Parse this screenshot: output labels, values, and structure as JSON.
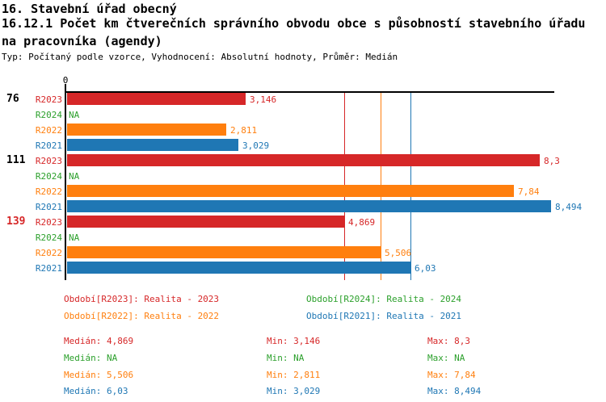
{
  "header": {
    "line1": "16. Stavební úřad obecný",
    "line2": "16.12.1 Počet km čtverečních správního obvodu obce s působností stavebního úřadu",
    "line3": "na pracovníka (agendy)",
    "meta": "Typ: Počítaný podle vzorce, Vyhodnocení: Absolutní hodnoty, Průměr: Medián"
  },
  "colors": {
    "r2023": "#d62728",
    "r2024": "#2ca02c",
    "r2022": "#ff7f0e",
    "r2021": "#1f77b4",
    "axis": "#000000"
  },
  "chart_data": {
    "type": "bar",
    "orientation": "horizontal",
    "axis": {
      "zero_label": "0",
      "min": 0,
      "max": 8.55,
      "grid": false
    },
    "series_colors": {
      "R2023": "#d62728",
      "R2024": "#2ca02c",
      "R2022": "#ff7f0e",
      "R2021": "#1f77b4"
    },
    "groups": [
      {
        "label": "76",
        "label_color": "#000000",
        "bars": [
          {
            "series": "R2023",
            "value": 3.146,
            "label": "3,146"
          },
          {
            "series": "R2024",
            "value": null,
            "label": "NA"
          },
          {
            "series": "R2022",
            "value": 2.811,
            "label": "2,811"
          },
          {
            "series": "R2021",
            "value": 3.029,
            "label": "3,029"
          }
        ]
      },
      {
        "label": "111",
        "label_color": "#000000",
        "bars": [
          {
            "series": "R2023",
            "value": 8.3,
            "label": "8,3"
          },
          {
            "series": "R2024",
            "value": null,
            "label": "NA"
          },
          {
            "series": "R2022",
            "value": 7.84,
            "label": "7,84"
          },
          {
            "series": "R2021",
            "value": 8.494,
            "label": "8,494"
          }
        ]
      },
      {
        "label": "139",
        "label_color": "#d62728",
        "bars": [
          {
            "series": "R2023",
            "value": 4.869,
            "label": "4,869"
          },
          {
            "series": "R2024",
            "value": null,
            "label": "NA"
          },
          {
            "series": "R2022",
            "value": 5.506,
            "label": "5,506"
          },
          {
            "series": "R2021",
            "value": 6.03,
            "label": "6,03"
          }
        ]
      }
    ],
    "median_lines": [
      {
        "series": "R2023",
        "value": 4.869
      },
      {
        "series": "R2022",
        "value": 5.506
      },
      {
        "series": "R2021",
        "value": 6.03
      }
    ]
  },
  "legend": {
    "items": [
      {
        "text": "Období[R2023]: Realita - 2023",
        "color": "#d62728"
      },
      {
        "text": "Období[R2024]: Realita - 2024",
        "color": "#2ca02c"
      },
      {
        "text": "Období[R2022]: Realita - 2022",
        "color": "#ff7f0e"
      },
      {
        "text": "Období[R2021]: Realita - 2021",
        "color": "#1f77b4"
      }
    ]
  },
  "stats": {
    "rows": [
      {
        "series": "R2023",
        "color": "#d62728",
        "median": "Medián: 4,869",
        "min": "Min: 3,146",
        "max": "Max: 8,3"
      },
      {
        "series": "R2024",
        "color": "#2ca02c",
        "median": "Medián: NA",
        "min": "Min: NA",
        "max": "Max: NA"
      },
      {
        "series": "R2022",
        "color": "#ff7f0e",
        "median": "Medián: 5,506",
        "min": "Min: 2,811",
        "max": "Max: 7,84"
      },
      {
        "series": "R2021",
        "color": "#1f77b4",
        "median": "Medián: 6,03",
        "min": "Min: 3,029",
        "max": "Max: 8,494"
      }
    ]
  }
}
